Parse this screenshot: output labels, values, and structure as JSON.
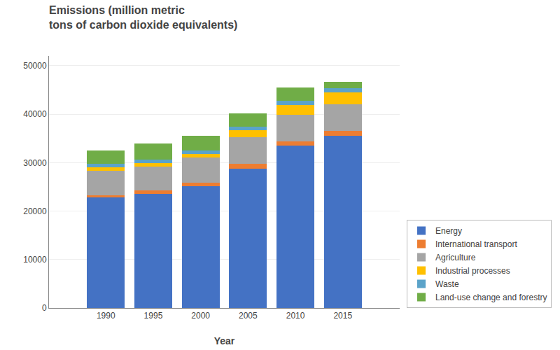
{
  "chart_data": {
    "type": "bar",
    "stacked": true,
    "title": "Emissions (million metric\ntons of carbon dioxide equivalents)",
    "xlabel": "Year",
    "x": [
      1990,
      1995,
      2000,
      2005,
      2010,
      2015
    ],
    "series": [
      {
        "name": "Energy",
        "color": "#4472C4",
        "values": [
          22800,
          23500,
          25200,
          28800,
          33500,
          35500
        ]
      },
      {
        "name": "International transport",
        "color": "#ED7D31",
        "values": [
          500,
          700,
          700,
          900,
          900,
          1000
        ]
      },
      {
        "name": "Agriculture",
        "color": "#A5A5A5",
        "values": [
          5000,
          5000,
          5200,
          5500,
          5500,
          5500
        ]
      },
      {
        "name": "Industrial processes",
        "color": "#FFC000",
        "values": [
          700,
          700,
          700,
          1500,
          2000,
          2500
        ]
      },
      {
        "name": "Waste",
        "color": "#5BA3C9",
        "values": [
          700,
          700,
          700,
          700,
          900,
          900
        ]
      },
      {
        "name": "Land-use change and forestry",
        "color": "#70AD47",
        "values": [
          2800,
          3400,
          3000,
          2700,
          2700,
          1200
        ]
      }
    ],
    "xlim": [
      1984,
      2021
    ],
    "xticks": [
      1990,
      1995,
      2000,
      2005,
      2010,
      2015
    ],
    "ylim": [
      0,
      52000
    ],
    "yticks": [
      0,
      10000,
      20000,
      30000,
      40000,
      50000
    ],
    "grid": true,
    "legend": "lower right"
  }
}
